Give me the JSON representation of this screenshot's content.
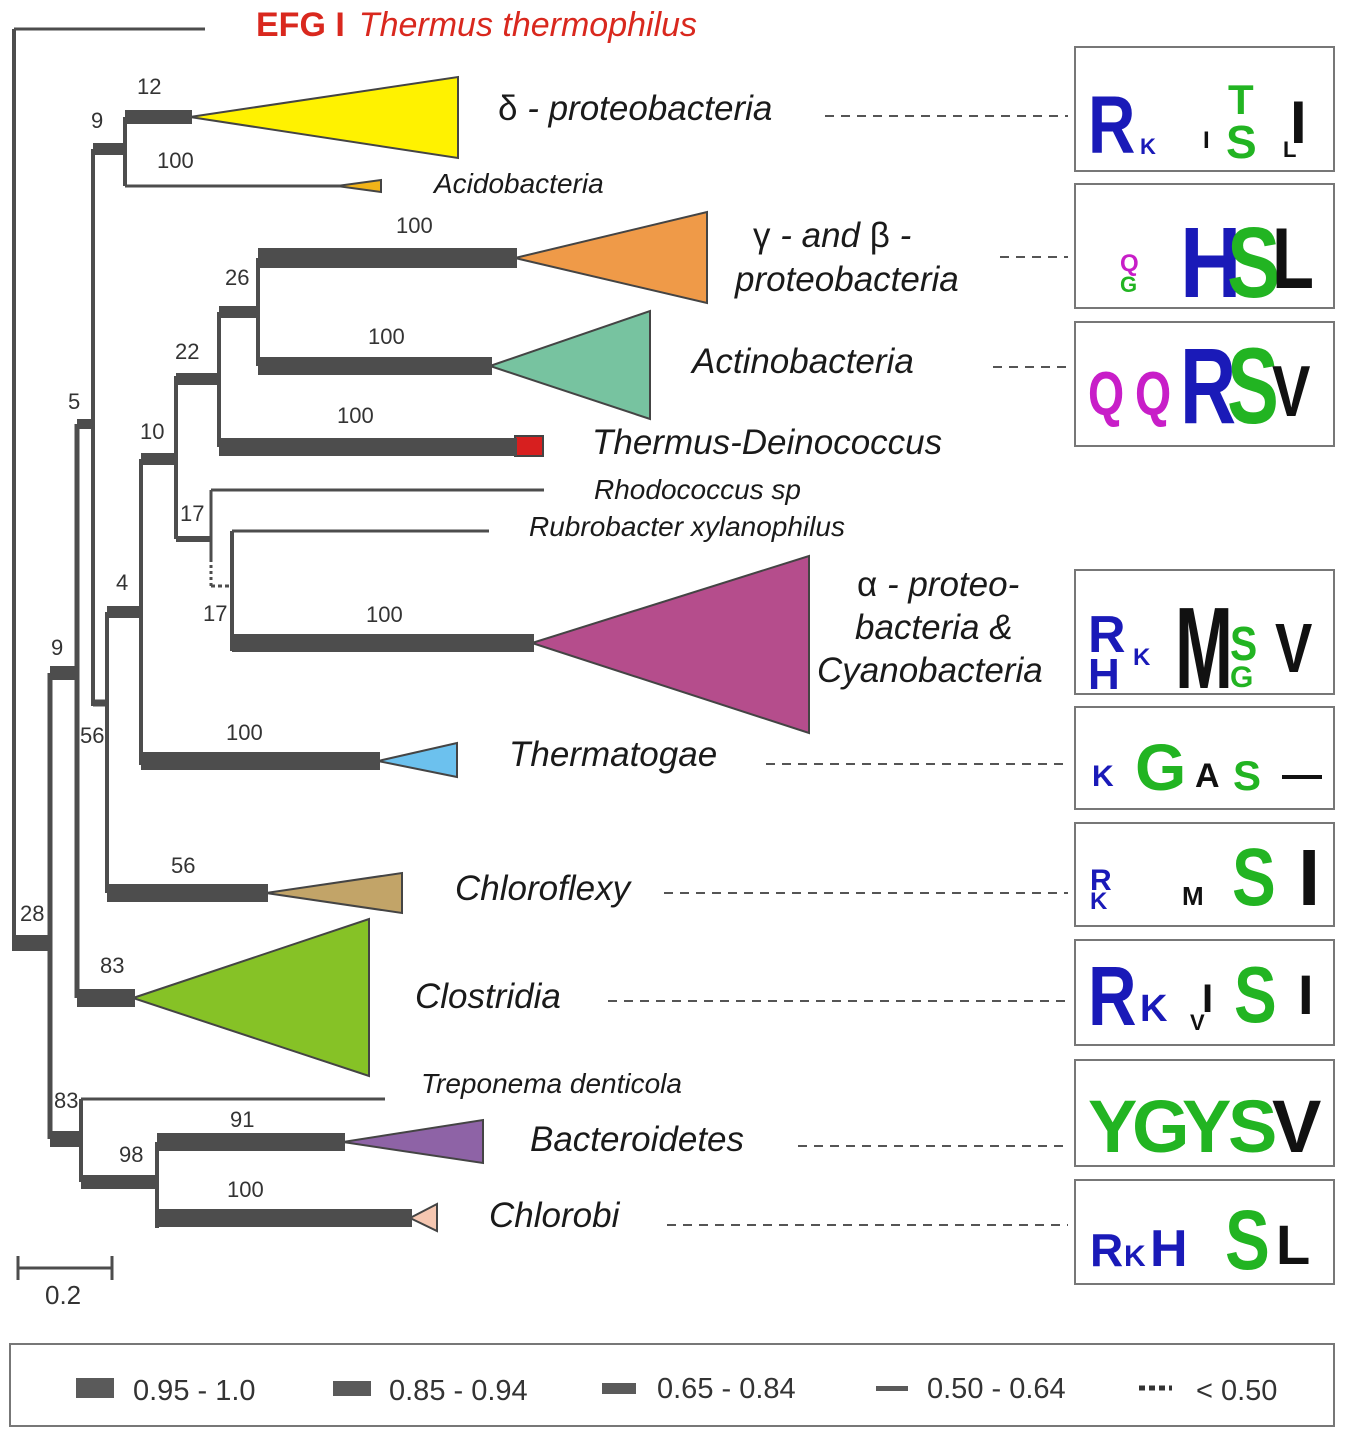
{
  "outgroup": {
    "prefix": "EFG I",
    "species": "Thermus thermophilus",
    "color": "#d9281e"
  },
  "clades": {
    "delta": {
      "prefix": "δ",
      "name": " - proteobacteria",
      "color": "#fff200"
    },
    "acido": {
      "name": "Acidobacteria",
      "color": "#f2b319"
    },
    "gamma_beta": {
      "line1_g": "γ",
      "line1_rest": " - and  ",
      "line1_b": "β",
      "line1_end": " -",
      "line2": "proteobacteria",
      "color": "#ef9a48"
    },
    "actino": {
      "name": "Actinobacteria",
      "color": "#77c3a0"
    },
    "thermus": {
      "name": "Thermus-Deinococcus",
      "color": "#d71f1f"
    },
    "rhodo": {
      "name": "Rhodococcus sp"
    },
    "rubro": {
      "name": "Rubrobacter xylanophilus"
    },
    "alpha": {
      "line1_a": "α",
      "line1_rest": " - proteo-",
      "line2": "bacteria &",
      "line3": "Cyanobacteria",
      "color": "#b54d8c"
    },
    "thermatogae": {
      "name": "Thermatogae",
      "color": "#6cc1ee"
    },
    "chloroflexy": {
      "name": "Chloroflexy",
      "color": "#c2a468"
    },
    "clostridia": {
      "name": "Clostridia",
      "color": "#86c226"
    },
    "treponema": {
      "name": "Treponema denticola"
    },
    "bacteroidetes": {
      "name": "Bacteroidetes",
      "color": "#8e63a6"
    },
    "chlorobi": {
      "name": "Chlorobi",
      "color": "#f6c7b1"
    }
  },
  "support": {
    "n12": "12",
    "n9a": "9",
    "n100a": "100",
    "n100b": "100",
    "n26": "26",
    "n100c": "100",
    "n22": "22",
    "n100d": "100",
    "n10": "10",
    "n17a": "17",
    "n17b": "17",
    "n100e": "100",
    "n5": "5",
    "n4": "4",
    "n9b": "9",
    "n56a": "56",
    "n100f": "100",
    "n56b": "56",
    "n28": "28",
    "n83a": "83",
    "n83b": "83",
    "n98": "98",
    "n91": "91",
    "n100g": "100"
  },
  "scale": {
    "label": "0.2"
  },
  "logos": {
    "delta": [
      "R",
      "K",
      "I",
      "T",
      "S",
      "I",
      "L"
    ],
    "gamma": [
      "Q",
      "G",
      "H",
      "S",
      "L"
    ],
    "actino": [
      "Q",
      "Q",
      "R",
      "S",
      "V"
    ],
    "alpha": [
      "R",
      "H",
      "K",
      "M",
      "S",
      "G",
      "V"
    ],
    "thermatogae": [
      "K",
      "G",
      "A",
      "S"
    ],
    "chloroflexy": [
      "R",
      "K",
      "M",
      "S",
      "I"
    ],
    "clostridia": [
      "R",
      "K",
      "I",
      "V",
      "S",
      "I"
    ],
    "bacteroidetes": [
      "Y",
      "G",
      "Y",
      "S",
      "V"
    ],
    "chlorobi": [
      "R",
      "K",
      "H",
      "S",
      "L"
    ]
  },
  "legend": {
    "items": [
      {
        "label": "0.95 - 1.0"
      },
      {
        "label": "0.85 - 0.94"
      },
      {
        "label": "0.65 - 0.84"
      },
      {
        "label": "0.50 - 0.64"
      },
      {
        "label": "< 0.50"
      }
    ]
  },
  "colors": {
    "branch": "#4d4d4d",
    "blue": "#1a1ab8",
    "green": "#22b422",
    "magenta": "#c81ec8",
    "black": "#111111"
  }
}
